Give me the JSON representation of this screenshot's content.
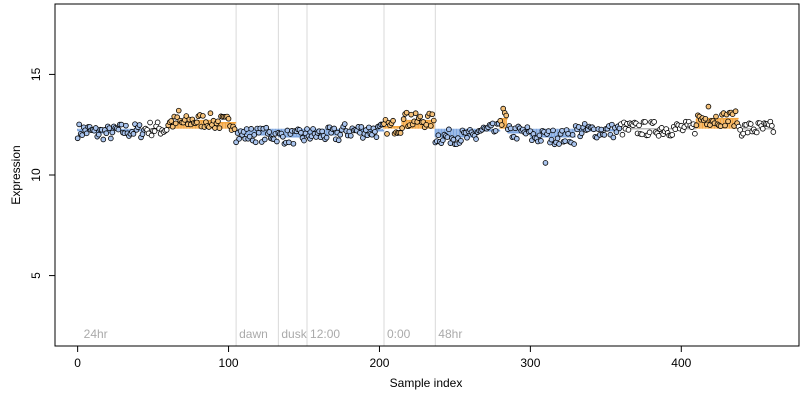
{
  "chart_data": {
    "type": "scatter",
    "title": "",
    "xlabel": "Sample index",
    "ylabel": "Expression",
    "xlim": [
      -15,
      478
    ],
    "ylim": [
      1.5,
      18.5
    ],
    "x_ticks": [
      0,
      100,
      200,
      300,
      400
    ],
    "y_ticks": [
      5,
      10,
      15
    ],
    "grid": false,
    "baseline": 12.3,
    "colors": {
      "above": "#f4a640",
      "below": "#7ea6e0",
      "point_edge": "#000000",
      "vline": "#d9d9d9",
      "annotation": "#aaaaaa"
    },
    "annotations": [
      {
        "x": 2,
        "label": "24hr"
      },
      {
        "x": 105,
        "label": "dawn"
      },
      {
        "x": 133,
        "label": "dusk"
      },
      {
        "x": 152,
        "label": "12:00"
      },
      {
        "x": 203,
        "label": "0:00"
      },
      {
        "x": 237,
        "label": "48hr"
      }
    ],
    "vlines": [
      105,
      133,
      152,
      203,
      237
    ],
    "segments": [
      {
        "from": 0,
        "to": 10,
        "value": 12.2
      },
      {
        "from": 10,
        "to": 25,
        "value": 12.1
      },
      {
        "from": 25,
        "to": 45,
        "value": 12.2
      },
      {
        "from": 45,
        "to": 60,
        "value": 12.3
      },
      {
        "from": 60,
        "to": 75,
        "value": 12.6
      },
      {
        "from": 75,
        "to": 90,
        "value": 12.7
      },
      {
        "from": 90,
        "to": 105,
        "value": 12.6
      },
      {
        "from": 105,
        "to": 133,
        "value": 12.0
      },
      {
        "from": 133,
        "to": 152,
        "value": 11.9
      },
      {
        "from": 152,
        "to": 175,
        "value": 12.0
      },
      {
        "from": 175,
        "to": 203,
        "value": 12.2
      },
      {
        "from": 203,
        "to": 215,
        "value": 12.4
      },
      {
        "from": 215,
        "to": 237,
        "value": 12.7
      },
      {
        "from": 237,
        "to": 265,
        "value": 11.9
      },
      {
        "from": 265,
        "to": 280,
        "value": 12.2
      },
      {
        "from": 280,
        "to": 285,
        "value": 12.8
      },
      {
        "from": 285,
        "to": 300,
        "value": 12.1
      },
      {
        "from": 300,
        "to": 330,
        "value": 11.9
      },
      {
        "from": 330,
        "to": 360,
        "value": 12.2
      },
      {
        "from": 360,
        "to": 410,
        "value": 12.3
      },
      {
        "from": 410,
        "to": 438,
        "value": 12.8
      },
      {
        "from": 438,
        "to": 462,
        "value": 12.3
      }
    ],
    "outliers": [
      {
        "x": 67,
        "y": 13.2
      },
      {
        "x": 218,
        "y": 13.1
      },
      {
        "x": 221,
        "y": 13.0
      },
      {
        "x": 282,
        "y": 13.3
      },
      {
        "x": 310,
        "y": 10.6
      },
      {
        "x": 418,
        "y": 13.4
      },
      {
        "x": 427,
        "y": 13.0
      },
      {
        "x": 432,
        "y": 13.1
      }
    ],
    "n_points": 462
  }
}
